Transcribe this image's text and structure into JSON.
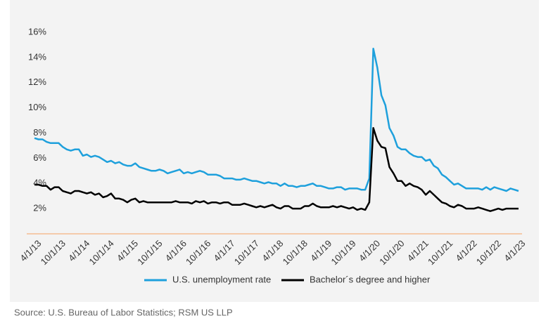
{
  "chart_data": {
    "type": "line",
    "categories": [
      "4/1/13",
      null,
      null,
      null,
      null,
      null,
      "10/1/13",
      null,
      null,
      null,
      null,
      null,
      "4/1/14",
      null,
      null,
      null,
      null,
      null,
      "10/1/14",
      null,
      null,
      null,
      null,
      null,
      "4/1/15",
      null,
      null,
      null,
      null,
      null,
      "10/1/15",
      null,
      null,
      null,
      null,
      null,
      "4/1/16",
      null,
      null,
      null,
      null,
      null,
      "10/1/16",
      null,
      null,
      null,
      null,
      null,
      "4/1/17",
      null,
      null,
      null,
      null,
      null,
      "10/1/17",
      null,
      null,
      null,
      null,
      null,
      "4/1/18",
      null,
      null,
      null,
      null,
      null,
      "10/1/18",
      null,
      null,
      null,
      null,
      null,
      "4/1/19",
      null,
      null,
      null,
      null,
      null,
      "10/1/19",
      null,
      null,
      null,
      null,
      null,
      "4/1/20",
      null,
      null,
      null,
      null,
      null,
      "10/1/20",
      null,
      null,
      null,
      null,
      null,
      "4/1/21",
      null,
      null,
      null,
      null,
      null,
      "10/1/21",
      null,
      null,
      null,
      null,
      null,
      "4/1/22",
      null,
      null,
      null,
      null,
      null,
      "10/1/22",
      null,
      null,
      null,
      null,
      null,
      "4/1/23"
    ],
    "series": [
      {
        "name": "U.S. unemployment rate",
        "color": "#1ea0dc",
        "values": [
          7.6,
          7.5,
          7.5,
          7.3,
          7.2,
          7.2,
          7.2,
          6.9,
          6.7,
          6.6,
          6.7,
          6.7,
          6.2,
          6.3,
          6.1,
          6.2,
          6.1,
          5.9,
          5.7,
          5.8,
          5.6,
          5.7,
          5.5,
          5.4,
          5.4,
          5.6,
          5.3,
          5.2,
          5.1,
          5.0,
          5.0,
          5.1,
          5.0,
          4.8,
          4.9,
          5.0,
          5.1,
          4.8,
          4.9,
          4.8,
          4.9,
          5.0,
          4.9,
          4.7,
          4.7,
          4.7,
          4.6,
          4.4,
          4.4,
          4.4,
          4.3,
          4.3,
          4.4,
          4.3,
          4.2,
          4.2,
          4.1,
          4.0,
          4.1,
          4.0,
          4.0,
          3.8,
          4.0,
          3.8,
          3.8,
          3.7,
          3.8,
          3.8,
          3.9,
          4.0,
          3.8,
          3.8,
          3.7,
          3.6,
          3.6,
          3.7,
          3.7,
          3.5,
          3.6,
          3.6,
          3.6,
          3.5,
          3.5,
          4.4,
          14.7,
          13.2,
          11.0,
          10.2,
          8.4,
          7.8,
          6.9,
          6.7,
          6.7,
          6.4,
          6.2,
          6.1,
          6.1,
          5.8,
          5.9,
          5.4,
          5.2,
          4.7,
          4.5,
          4.2,
          3.9,
          4.0,
          3.8,
          3.6,
          3.6,
          3.6,
          3.6,
          3.5,
          3.7,
          3.5,
          3.7,
          3.6,
          3.5,
          3.4,
          3.6,
          3.5,
          3.4
        ]
      },
      {
        "name": "Bachelor´s degree and higher",
        "color": "#000000",
        "values": [
          3.9,
          3.9,
          3.8,
          3.8,
          3.5,
          3.7,
          3.7,
          3.4,
          3.3,
          3.2,
          3.4,
          3.4,
          3.3,
          3.2,
          3.3,
          3.1,
          3.2,
          2.9,
          3.0,
          3.2,
          2.8,
          2.8,
          2.7,
          2.5,
          2.7,
          2.8,
          2.5,
          2.6,
          2.5,
          2.5,
          2.5,
          2.5,
          2.5,
          2.5,
          2.5,
          2.6,
          2.5,
          2.5,
          2.5,
          2.4,
          2.6,
          2.5,
          2.6,
          2.4,
          2.5,
          2.5,
          2.4,
          2.5,
          2.5,
          2.3,
          2.3,
          2.3,
          2.4,
          2.3,
          2.2,
          2.1,
          2.2,
          2.1,
          2.2,
          2.3,
          2.1,
          2.0,
          2.2,
          2.2,
          2.0,
          2.0,
          2.0,
          2.2,
          2.2,
          2.4,
          2.2,
          2.1,
          2.1,
          2.1,
          2.2,
          2.1,
          2.2,
          2.1,
          2.0,
          2.1,
          1.9,
          2.0,
          1.9,
          2.5,
          8.4,
          7.4,
          6.9,
          6.8,
          5.3,
          4.8,
          4.2,
          4.2,
          3.8,
          4.0,
          3.8,
          3.7,
          3.5,
          3.1,
          3.4,
          3.1,
          2.8,
          2.5,
          2.4,
          2.2,
          2.1,
          2.3,
          2.2,
          2.0,
          2.0,
          2.0,
          2.1,
          2.0,
          1.9,
          1.8,
          1.9,
          2.0,
          1.9,
          2.0,
          2.0,
          2.0,
          2.0
        ]
      }
    ],
    "ylim": [
      0,
      16
    ],
    "yticks": [
      {
        "value": 2,
        "label": "2%"
      },
      {
        "value": 4,
        "label": "4%"
      },
      {
        "value": 6,
        "label": "6%"
      },
      {
        "value": 8,
        "label": "8%"
      },
      {
        "value": 10,
        "label": "10%"
      },
      {
        "value": 12,
        "label": "12%"
      },
      {
        "value": 14,
        "label": "14%"
      },
      {
        "value": 16,
        "label": "16%"
      }
    ],
    "axis_color": "#f4a261"
  },
  "source": "Source: U.S. Bureau of Labor Statistics; RSM US LLP"
}
